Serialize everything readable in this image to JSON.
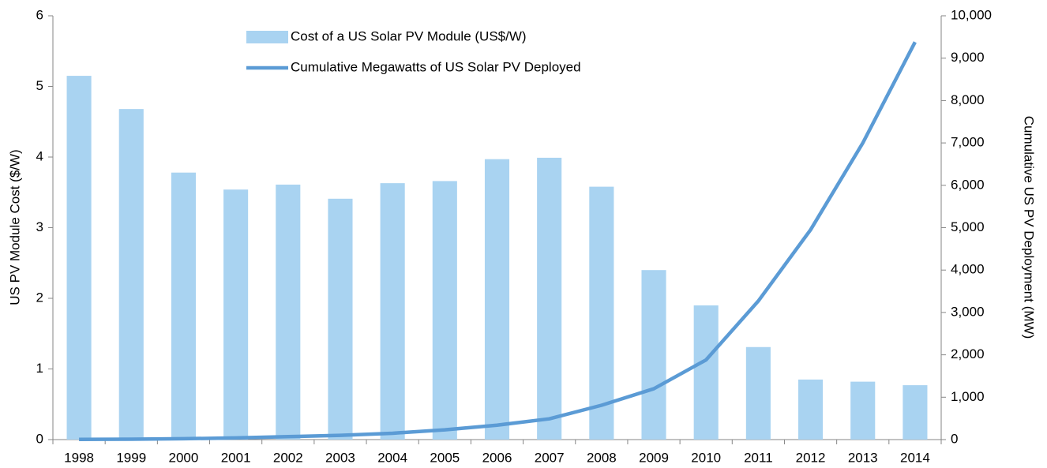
{
  "chart_data": {
    "type": "bar_line",
    "y_label": "US PV Module Cost ($/W)",
    "y2_label": "Cumulative US PV Deployment (MW)",
    "categories": [
      "1998",
      "1999",
      "2000",
      "2001",
      "2002",
      "2003",
      "2004",
      "2005",
      "2006",
      "2007",
      "2008",
      "2009",
      "2010",
      "2011",
      "2012",
      "2013",
      "2014"
    ],
    "series": [
      {
        "name": "Cost of a US Solar PV Module (US$/W)",
        "type": "bar",
        "color": "#a9d3f1",
        "values": [
          5.15,
          4.68,
          3.78,
          3.54,
          3.61,
          3.41,
          3.63,
          3.66,
          3.97,
          3.99,
          3.58,
          2.4,
          1.9,
          1.31,
          0.85,
          0.82,
          0.77
        ]
      },
      {
        "name": "Cumulative Megawatts of US Solar PV Deployed",
        "type": "line",
        "axis": "y2",
        "color": "#5b9bd5",
        "values": [
          5,
          10,
          20,
          40,
          70,
          100,
          150,
          230,
          340,
          490,
          810,
          1200,
          1880,
          3270,
          4950,
          7000,
          9380
        ]
      }
    ],
    "ylim": [
      0,
      6
    ],
    "yticks": [
      0,
      1,
      2,
      3,
      4,
      5,
      6
    ],
    "y2lim": [
      0,
      10000
    ],
    "y2ticks": [
      0,
      {
        "value": 1000,
        "label": "1,000"
      },
      {
        "value": 2000,
        "label": "2,000"
      },
      {
        "value": 3000,
        "label": "3,000"
      },
      {
        "value": 4000,
        "label": "4,000"
      },
      {
        "value": 5000,
        "label": "5,000"
      },
      {
        "value": 6000,
        "label": "6,000"
      },
      {
        "value": 7000,
        "label": "7,000"
      },
      {
        "value": 8000,
        "label": "8,000"
      },
      {
        "value": 9000,
        "label": "9,000"
      },
      {
        "value": 10000,
        "label": "10,000"
      }
    ],
    "grid": false,
    "legend": "top"
  }
}
